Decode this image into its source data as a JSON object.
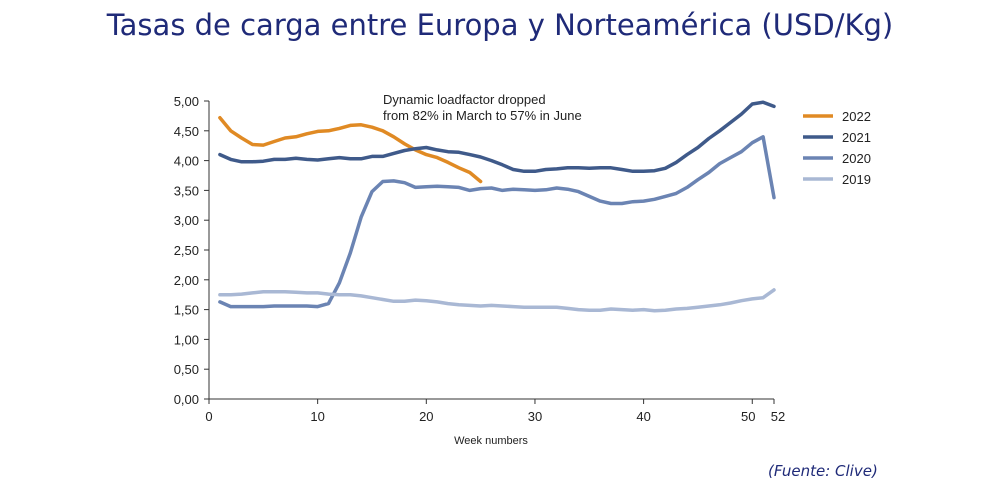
{
  "title": "Tasas de carga entre Europa y Norteamérica (USD/Kg)",
  "source": "(Fuente: Clive)",
  "chart_data": {
    "type": "line",
    "title": "Tasas de carga entre Europa y Norteamérica (USD/Kg)",
    "xlabel": "Week numbers",
    "ylabel": "",
    "xlim": [
      0,
      52
    ],
    "ylim": [
      0,
      5
    ],
    "xticks": [
      0,
      10,
      20,
      30,
      40,
      50,
      52
    ],
    "yticks": [
      "0,00",
      "0,50",
      "1,00",
      "1,50",
      "2,00",
      "2,50",
      "3,00",
      "3,50",
      "4,00",
      "4,50",
      "5,00"
    ],
    "grid": false,
    "legend_position": "right",
    "annotation": [
      "Dynamic loadfactor dropped",
      "from 82% in March to 57% in June"
    ],
    "series": [
      {
        "name": "2022",
        "color": "#e08a24",
        "start_week": 1,
        "values": [
          4.72,
          4.5,
          4.38,
          4.27,
          4.26,
          4.32,
          4.38,
          4.4,
          4.45,
          4.49,
          4.5,
          4.54,
          4.59,
          4.6,
          4.56,
          4.5,
          4.4,
          4.28,
          4.18,
          4.1,
          4.05,
          3.97,
          3.88,
          3.8,
          3.65
        ]
      },
      {
        "name": "2021",
        "color": "#3f5a8a",
        "start_week": 1,
        "values": [
          4.1,
          4.02,
          3.98,
          3.98,
          3.99,
          4.02,
          4.02,
          4.04,
          4.02,
          4.01,
          4.03,
          4.05,
          4.03,
          4.03,
          4.07,
          4.07,
          4.12,
          4.17,
          4.2,
          4.22,
          4.18,
          4.15,
          4.14,
          4.1,
          4.06,
          4.0,
          3.93,
          3.85,
          3.82,
          3.82,
          3.85,
          3.86,
          3.88,
          3.88,
          3.87,
          3.88,
          3.88,
          3.85,
          3.82,
          3.82,
          3.83,
          3.87,
          3.97,
          4.1,
          4.22,
          4.37,
          4.5,
          4.64,
          4.78,
          4.95,
          4.98,
          4.91
        ]
      },
      {
        "name": "2020",
        "color": "#6b84b3",
        "start_week": 1,
        "values": [
          1.63,
          1.55,
          1.55,
          1.55,
          1.55,
          1.56,
          1.56,
          1.56,
          1.56,
          1.55,
          1.6,
          1.95,
          2.45,
          3.05,
          3.48,
          3.65,
          3.66,
          3.63,
          3.55,
          3.56,
          3.57,
          3.56,
          3.55,
          3.5,
          3.53,
          3.54,
          3.5,
          3.52,
          3.51,
          3.5,
          3.51,
          3.54,
          3.52,
          3.48,
          3.4,
          3.32,
          3.28,
          3.28,
          3.31,
          3.32,
          3.35,
          3.4,
          3.45,
          3.55,
          3.68,
          3.8,
          3.95,
          4.05,
          4.15,
          4.3,
          4.4,
          3.38
        ]
      },
      {
        "name": "2019",
        "color": "#a9b8d4",
        "start_week": 1,
        "values": [
          1.75,
          1.75,
          1.76,
          1.78,
          1.8,
          1.8,
          1.8,
          1.79,
          1.78,
          1.78,
          1.76,
          1.75,
          1.75,
          1.73,
          1.7,
          1.67,
          1.64,
          1.64,
          1.66,
          1.65,
          1.63,
          1.6,
          1.58,
          1.57,
          1.56,
          1.57,
          1.56,
          1.55,
          1.54,
          1.54,
          1.54,
          1.54,
          1.52,
          1.5,
          1.49,
          1.49,
          1.51,
          1.5,
          1.49,
          1.5,
          1.48,
          1.49,
          1.51,
          1.52,
          1.54,
          1.56,
          1.58,
          1.61,
          1.65,
          1.68,
          1.7,
          1.83
        ]
      }
    ]
  }
}
